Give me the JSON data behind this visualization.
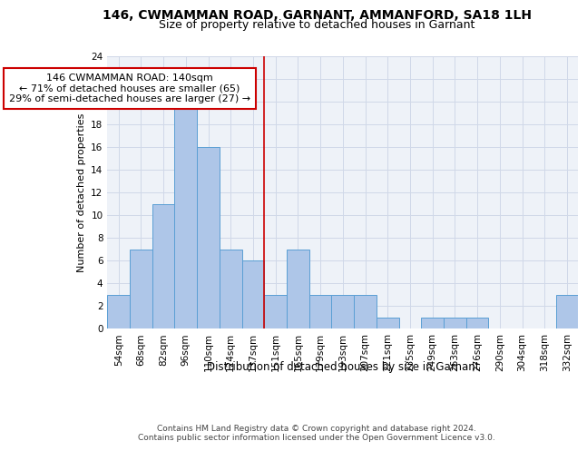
{
  "title1": "146, CWMAMMAN ROAD, GARNANT, AMMANFORD, SA18 1LH",
  "title2": "Size of property relative to detached houses in Garnant",
  "xlabel": "Distribution of detached houses by size in Garnant",
  "ylabel": "Number of detached properties",
  "categories": [
    "54sqm",
    "68sqm",
    "82sqm",
    "96sqm",
    "110sqm",
    "124sqm",
    "137sqm",
    "151sqm",
    "165sqm",
    "179sqm",
    "193sqm",
    "207sqm",
    "221sqm",
    "235sqm",
    "249sqm",
    "263sqm",
    "276sqm",
    "290sqm",
    "304sqm",
    "318sqm",
    "332sqm"
  ],
  "values": [
    3,
    7,
    11,
    20,
    16,
    7,
    6,
    3,
    7,
    3,
    3,
    3,
    1,
    0,
    1,
    1,
    1,
    0,
    0,
    0,
    3
  ],
  "bar_color": "#aec6e8",
  "bar_edge_color": "#5a9fd4",
  "grid_color": "#d0d8e8",
  "background_color": "#eef2f8",
  "annotation_line1": "146 CWMAMMAN ROAD: 140sqm",
  "annotation_line2": "← 71% of detached houses are smaller (65)",
  "annotation_line3": "29% of semi-detached houses are larger (27) →",
  "annotation_box_color": "#ffffff",
  "annotation_box_edge_color": "#cc0000",
  "vline_x": 6.5,
  "vline_color": "#cc0000",
  "ylim": [
    0,
    24
  ],
  "yticks": [
    0,
    2,
    4,
    6,
    8,
    10,
    12,
    14,
    16,
    18,
    20,
    22,
    24
  ],
  "footer": "Contains HM Land Registry data © Crown copyright and database right 2024.\nContains public sector information licensed under the Open Government Licence v3.0.",
  "title1_fontsize": 10,
  "title2_fontsize": 9,
  "xlabel_fontsize": 8.5,
  "ylabel_fontsize": 8,
  "tick_fontsize": 7.5,
  "annotation_fontsize": 8,
  "footer_fontsize": 6.5
}
